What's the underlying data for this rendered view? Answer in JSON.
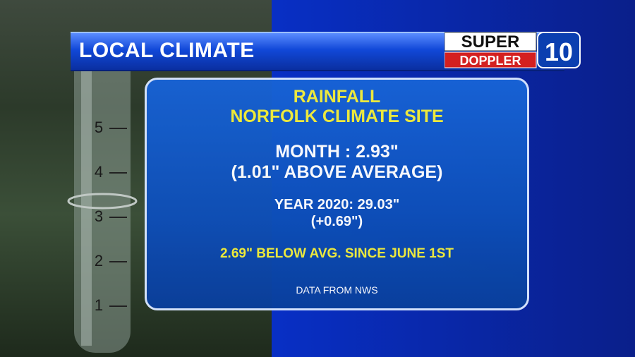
{
  "header": {
    "title": "LOCAL CLIMATE"
  },
  "logo": {
    "line1": "SUPER",
    "line2": "DOPPLER",
    "number": "10"
  },
  "panel": {
    "title": [
      "RAINFALL",
      "NORFOLK CLIMATE SITE"
    ],
    "month": [
      "MONTH : 2.93\"",
      "(1.01\" ABOVE AVERAGE)"
    ],
    "year": [
      "YEAR 2020: 29.03\"",
      "(+0.69\")"
    ],
    "note": "2.69\" BELOW AVG. SINCE JUNE 1ST",
    "source": "DATA FROM NWS"
  },
  "gauge": {
    "labels": [
      "5",
      "4",
      "3",
      "2",
      "1"
    ]
  }
}
